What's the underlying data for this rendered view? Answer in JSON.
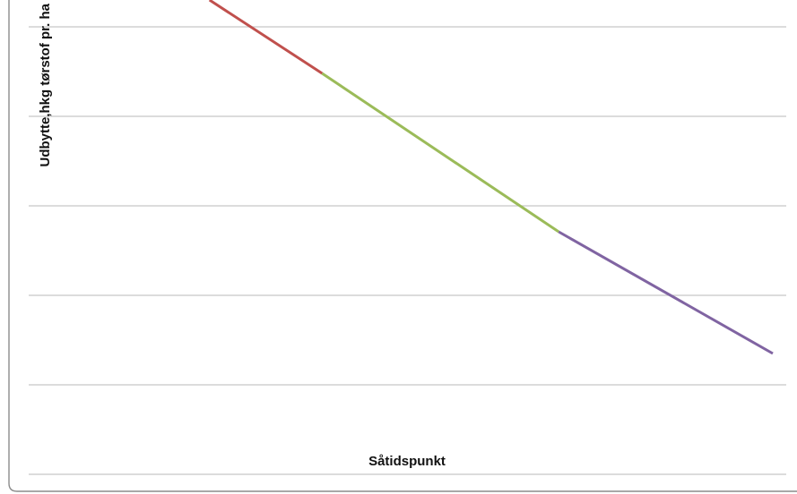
{
  "chart_data": {
    "type": "line",
    "xlabel": "Såtidspunkt",
    "ylabel": "Udbytte,hkg tørstof pr. ha",
    "grid": true,
    "legend": "none",
    "x": [
      0,
      1,
      2,
      3,
      4,
      5
    ],
    "series": [
      {
        "color": "#c0504d",
        "x": [
          0,
          1.0
        ],
        "y": [
          5.3,
          4.48
        ]
      },
      {
        "color": "#9bbb59",
        "x": [
          1.0,
          3.1
        ],
        "y": [
          4.48,
          2.71
        ]
      },
      {
        "color": "#8064a2",
        "x": [
          3.1,
          5.0
        ],
        "y": [
          2.71,
          1.35
        ]
      }
    ],
    "xlim": [
      -1.0,
      5.0
    ],
    "ylim": [
      0,
      5.3
    ]
  }
}
